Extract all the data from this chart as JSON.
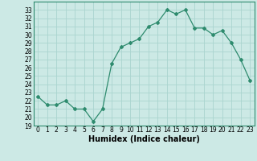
{
  "x": [
    0,
    1,
    2,
    3,
    4,
    5,
    6,
    7,
    8,
    9,
    10,
    11,
    12,
    13,
    14,
    15,
    16,
    17,
    18,
    19,
    20,
    21,
    22,
    23
  ],
  "y": [
    22.5,
    21.5,
    21.5,
    22.0,
    21.0,
    21.0,
    19.5,
    21.0,
    26.5,
    28.5,
    29.0,
    29.5,
    31.0,
    31.5,
    33.0,
    32.5,
    33.0,
    30.8,
    30.8,
    30.0,
    30.5,
    29.0,
    27.0,
    24.5
  ],
  "xlabel": "Humidex (Indice chaleur)",
  "line_color": "#2e8b6e",
  "marker": "D",
  "marker_size": 2,
  "bg_color": "#cce9e5",
  "grid_color": "#aad4cf",
  "ylim": [
    19,
    34
  ],
  "yticks": [
    19,
    20,
    21,
    22,
    23,
    24,
    25,
    26,
    27,
    28,
    29,
    30,
    31,
    32,
    33
  ],
  "xticks": [
    0,
    1,
    2,
    3,
    4,
    5,
    6,
    7,
    8,
    9,
    10,
    11,
    12,
    13,
    14,
    15,
    16,
    17,
    18,
    19,
    20,
    21,
    22,
    23
  ],
  "tick_fontsize": 5.5,
  "xlabel_fontsize": 7.0,
  "spine_color": "#2e8b6e"
}
